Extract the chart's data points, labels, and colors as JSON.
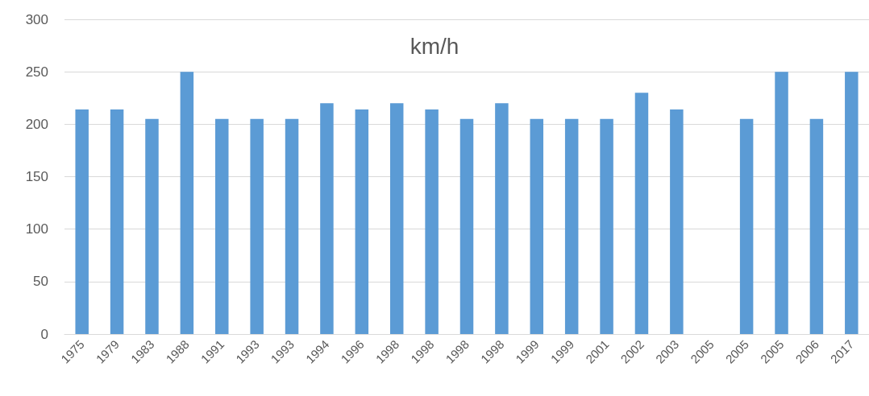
{
  "chart_data": {
    "type": "bar",
    "title": "km/h",
    "categories": [
      "1975",
      "1979",
      "1983",
      "1988",
      "1991",
      "1993",
      "1993",
      "1994",
      "1996",
      "1998",
      "1998",
      "1998",
      "1998",
      "1999",
      "1999",
      "2001",
      "2002",
      "2003",
      "2005",
      "2005",
      "2005",
      "2006",
      "2017"
    ],
    "values": [
      214,
      214,
      205,
      250,
      205,
      205,
      205,
      220,
      214,
      220,
      214,
      205,
      220,
      205,
      205,
      205,
      230,
      214,
      null,
      205,
      250,
      205,
      250
    ],
    "color": "#5b9bd5",
    "ylim": [
      0,
      300
    ],
    "yticks": [
      0,
      50,
      100,
      150,
      200,
      250,
      300
    ],
    "grid": "y"
  }
}
